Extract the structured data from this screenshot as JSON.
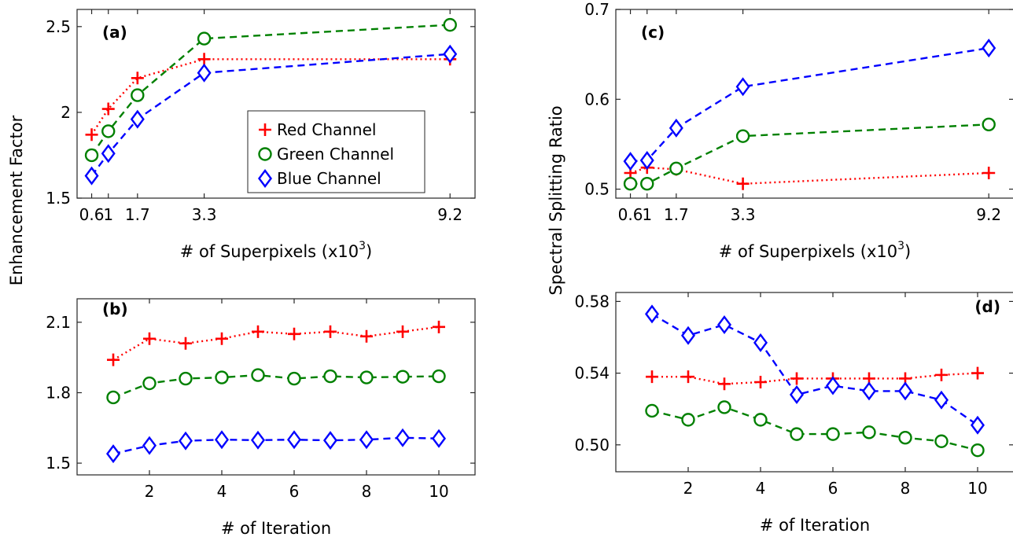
{
  "shared_labels": {
    "left_ylabel": "Enhancement Factor",
    "right_ylabel": "Spectral Splitting Ratio"
  },
  "legend": {
    "items": [
      {
        "label": "Red Channel",
        "color": "#ff0000",
        "marker": "plus"
      },
      {
        "label": "Green Channel",
        "color": "#008000",
        "marker": "circle"
      },
      {
        "label": "Blue Channel",
        "color": "#0000ff",
        "marker": "diamond"
      }
    ]
  },
  "chart_data": [
    {
      "id": "a",
      "type": "line",
      "panel_label": "(a)",
      "xlabel": "# of Superpixels (x10",
      "xlabel_sup": "3",
      "xlabel_tail": ")",
      "x": [
        0.6,
        1.0,
        1.7,
        3.3,
        9.2
      ],
      "xticks": [
        0.6,
        1,
        1.7,
        3.3,
        9.2
      ],
      "xtick_labels": [
        "0.6",
        "1",
        "1.7",
        "3.3",
        "9.2"
      ],
      "xlim": [
        0.25,
        9.8
      ],
      "ylim": [
        1.5,
        2.6
      ],
      "yticks": [
        1.5,
        2,
        2.5
      ],
      "ytick_labels": [
        "1.5",
        "2",
        "2.5"
      ],
      "series": [
        {
          "name": "Red Channel",
          "color": "#ff0000",
          "marker": "plus",
          "dash": "dot",
          "values": [
            1.87,
            2.02,
            2.2,
            2.31,
            2.31
          ]
        },
        {
          "name": "Green Channel",
          "color": "#008000",
          "marker": "circle",
          "dash": "dash",
          "values": [
            1.75,
            1.89,
            2.1,
            2.43,
            2.51
          ]
        },
        {
          "name": "Blue Channel",
          "color": "#0000ff",
          "marker": "diamond",
          "dash": "dash",
          "values": [
            1.63,
            1.76,
            1.96,
            2.23,
            2.34
          ]
        }
      ],
      "legend": "inside-bottom-right"
    },
    {
      "id": "b",
      "type": "line",
      "panel_label": "(b)",
      "xlabel": "# of Iteration",
      "x": [
        1,
        2,
        3,
        4,
        5,
        6,
        7,
        8,
        9,
        10
      ],
      "xticks": [
        2,
        4,
        6,
        8,
        10
      ],
      "xtick_labels": [
        "2",
        "4",
        "6",
        "8",
        "10"
      ],
      "xlim": [
        0,
        11
      ],
      "ylim": [
        1.45,
        2.2
      ],
      "yticks": [
        1.5,
        1.8,
        2.1
      ],
      "ytick_labels": [
        "1.5",
        "1.8",
        "2.1"
      ],
      "series": [
        {
          "name": "Red Channel",
          "color": "#ff0000",
          "marker": "plus",
          "dash": "dot",
          "values": [
            1.94,
            2.03,
            2.01,
            2.03,
            2.06,
            2.05,
            2.06,
            2.04,
            2.06,
            2.08
          ]
        },
        {
          "name": "Green Channel",
          "color": "#008000",
          "marker": "circle",
          "dash": "dash",
          "values": [
            1.78,
            1.84,
            1.86,
            1.865,
            1.875,
            1.86,
            1.87,
            1.865,
            1.868,
            1.87
          ]
        },
        {
          "name": "Blue Channel",
          "color": "#0000ff",
          "marker": "diamond",
          "dash": "dash",
          "values": [
            1.54,
            1.575,
            1.595,
            1.6,
            1.598,
            1.6,
            1.597,
            1.6,
            1.608,
            1.605
          ]
        }
      ]
    },
    {
      "id": "c",
      "type": "line",
      "panel_label": "(c)",
      "xlabel": "# of Superpixels (x10",
      "xlabel_sup": "3",
      "xlabel_tail": ")",
      "x": [
        0.6,
        1.0,
        1.7,
        3.3,
        9.2
      ],
      "xticks": [
        0.6,
        1,
        1.7,
        3.3,
        9.2
      ],
      "xtick_labels": [
        "0.6",
        "1",
        "1.7",
        "3.3",
        "9.2"
      ],
      "xlim": [
        0.25,
        9.8
      ],
      "ylim": [
        0.49,
        0.7
      ],
      "yticks": [
        0.5,
        0.6,
        0.7
      ],
      "ytick_labels": [
        "0.5",
        "0.6",
        "0.7"
      ],
      "series": [
        {
          "name": "Red Channel",
          "color": "#ff0000",
          "marker": "plus",
          "dash": "dot",
          "values": [
            0.518,
            0.524,
            0.522,
            0.506,
            0.518
          ]
        },
        {
          "name": "Green Channel",
          "color": "#008000",
          "marker": "circle",
          "dash": "dash",
          "values": [
            0.506,
            0.506,
            0.523,
            0.559,
            0.572
          ]
        },
        {
          "name": "Blue Channel",
          "color": "#0000ff",
          "marker": "diamond",
          "dash": "dash",
          "values": [
            0.531,
            0.532,
            0.568,
            0.614,
            0.657
          ]
        }
      ]
    },
    {
      "id": "d",
      "type": "line",
      "panel_label": "(d)",
      "xlabel": "# of Iteration",
      "x": [
        1,
        2,
        3,
        4,
        5,
        6,
        7,
        8,
        9,
        10
      ],
      "xticks": [
        2,
        4,
        6,
        8,
        10
      ],
      "xtick_labels": [
        "2",
        "4",
        "6",
        "8",
        "10"
      ],
      "xlim": [
        0,
        11
      ],
      "ylim": [
        0.485,
        0.585
      ],
      "yticks": [
        0.5,
        0.54,
        0.58
      ],
      "ytick_labels": [
        "0.50",
        "0.54",
        "0.58"
      ],
      "series": [
        {
          "name": "Red Channel",
          "color": "#ff0000",
          "marker": "plus",
          "dash": "dot",
          "values": [
            0.538,
            0.538,
            0.534,
            0.535,
            0.537,
            0.537,
            0.537,
            0.537,
            0.539,
            0.54
          ]
        },
        {
          "name": "Green Channel",
          "color": "#008000",
          "marker": "circle",
          "dash": "dash",
          "values": [
            0.519,
            0.514,
            0.521,
            0.514,
            0.506,
            0.506,
            0.507,
            0.504,
            0.502,
            0.497
          ]
        },
        {
          "name": "Blue Channel",
          "color": "#0000ff",
          "marker": "diamond",
          "dash": "dash",
          "values": [
            0.573,
            0.561,
            0.567,
            0.557,
            0.528,
            0.533,
            0.53,
            0.53,
            0.525,
            0.511
          ]
        }
      ]
    }
  ]
}
